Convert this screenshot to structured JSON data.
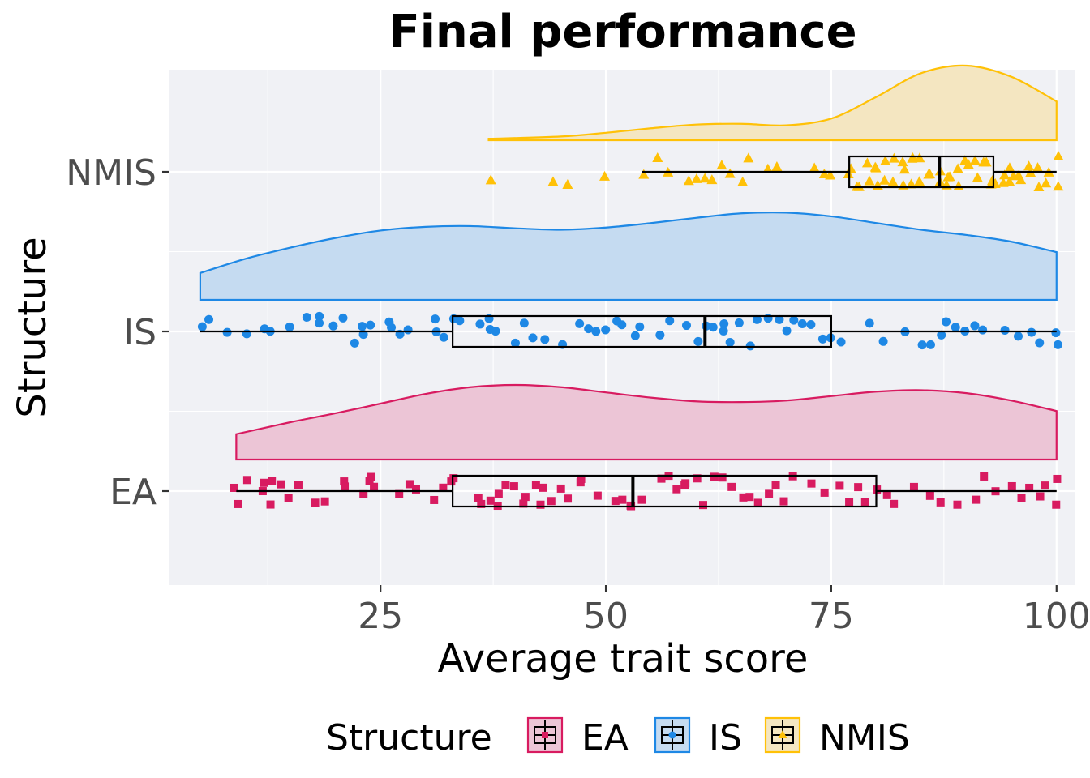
{
  "chart_data": {
    "type": "raincloud",
    "title": "Final performance",
    "xlabel": "Average trait score",
    "ylabel": "Structure",
    "xlim": [
      1.5,
      102
    ],
    "xticks": [
      25,
      50,
      75,
      100
    ],
    "grid": true,
    "legend": {
      "title": "Structure",
      "position": "bottom"
    },
    "categories": [
      "EA",
      "IS",
      "NMIS"
    ],
    "series": [
      {
        "name": "EA",
        "color": "#d81b60",
        "fill": "#ecc5d6",
        "marker": "square",
        "box": {
          "min": 9,
          "q1": 33,
          "median": 53,
          "q3": 80,
          "max": 100
        },
        "density": {
          "x": [
            9,
            15,
            20,
            25,
            30,
            35,
            40,
            45,
            50,
            55,
            60,
            65,
            70,
            75,
            80,
            85,
            90,
            95,
            100
          ],
          "y": [
            0.34,
            0.5,
            0.62,
            0.75,
            0.88,
            0.97,
            1.0,
            0.97,
            0.9,
            0.83,
            0.78,
            0.77,
            0.79,
            0.85,
            0.91,
            0.93,
            0.89,
            0.79,
            0.65
          ]
        },
        "points": [
          9,
          9,
          10,
          12,
          12,
          13,
          13,
          14,
          15,
          16,
          18,
          19,
          21,
          21,
          23,
          24,
          24,
          24,
          27,
          28,
          29,
          31,
          32,
          33,
          33,
          36,
          36,
          37,
          38,
          38,
          39,
          40,
          41,
          41,
          42,
          43,
          43,
          44,
          45,
          46,
          47,
          47,
          49,
          51,
          52,
          53,
          53,
          54,
          56,
          57,
          58,
          59,
          59,
          60,
          61,
          62,
          63,
          64,
          65,
          66,
          67,
          68,
          69,
          70,
          71,
          73,
          74,
          76,
          77,
          78,
          79,
          80,
          81,
          82,
          84,
          86,
          87,
          89,
          91,
          92,
          93,
          95,
          96,
          97,
          98,
          99,
          100,
          100
        ]
      },
      {
        "name": "IS",
        "color": "#1e88e5",
        "fill": "#c5dbf1",
        "marker": "circle",
        "box": {
          "min": 5,
          "q1": 33,
          "median": 61,
          "q3": 75,
          "max": 100
        },
        "density": {
          "x": [
            5,
            10,
            15,
            20,
            25,
            30,
            35,
            40,
            45,
            50,
            55,
            60,
            65,
            70,
            75,
            80,
            85,
            90,
            95,
            100
          ],
          "y": [
            0.36,
            0.55,
            0.7,
            0.83,
            0.93,
            0.98,
            0.99,
            0.96,
            0.94,
            0.97,
            1.03,
            1.1,
            1.16,
            1.17,
            1.12,
            1.03,
            0.94,
            0.87,
            0.78,
            0.64
          ]
        },
        "points": [
          5,
          6,
          8,
          10,
          12,
          13,
          15,
          17,
          18,
          18,
          20,
          21,
          22,
          23,
          23,
          24,
          26,
          26,
          27,
          28,
          31,
          31,
          32,
          33,
          34,
          36,
          37,
          37,
          38,
          40,
          41,
          42,
          43,
          45,
          47,
          48,
          49,
          50,
          51,
          52,
          53,
          54,
          56,
          57,
          59,
          60,
          61,
          62,
          63,
          63,
          64,
          65,
          66,
          67,
          68,
          69,
          70,
          71,
          72,
          73,
          74,
          75,
          76,
          79,
          81,
          83,
          85,
          86,
          87,
          88,
          89,
          90,
          91,
          92,
          94,
          96,
          97,
          98,
          100,
          100
        ]
      },
      {
        "name": "NMIS",
        "color": "#ffc107",
        "fill": "#f4e6c1",
        "marker": "triangle",
        "box": {
          "min": 54,
          "q1": 77,
          "median": 87,
          "q3": 93,
          "max": 100
        },
        "density": {
          "x": [
            37,
            45,
            50,
            55,
            60,
            65,
            70,
            75,
            80,
            85,
            90,
            95,
            100
          ],
          "y": [
            0.02,
            0.05,
            0.1,
            0.16,
            0.21,
            0.22,
            0.2,
            0.29,
            0.58,
            0.9,
            1.0,
            0.85,
            0.52
          ]
        },
        "points": [
          37,
          44,
          46,
          50,
          54,
          56,
          57,
          59,
          60,
          61,
          62,
          63,
          64,
          65,
          66,
          68,
          69,
          73,
          74,
          75,
          77,
          77,
          78,
          78,
          79,
          79,
          80,
          80,
          80,
          81,
          81,
          82,
          82,
          83,
          83,
          83,
          84,
          84,
          84,
          85,
          85,
          86,
          86,
          87,
          87,
          88,
          88,
          88,
          89,
          89,
          90,
          90,
          91,
          91,
          92,
          92,
          93,
          93,
          93,
          94,
          94,
          95,
          95,
          95,
          96,
          96,
          97,
          97,
          98,
          98,
          99,
          99,
          100,
          100
        ]
      }
    ]
  }
}
